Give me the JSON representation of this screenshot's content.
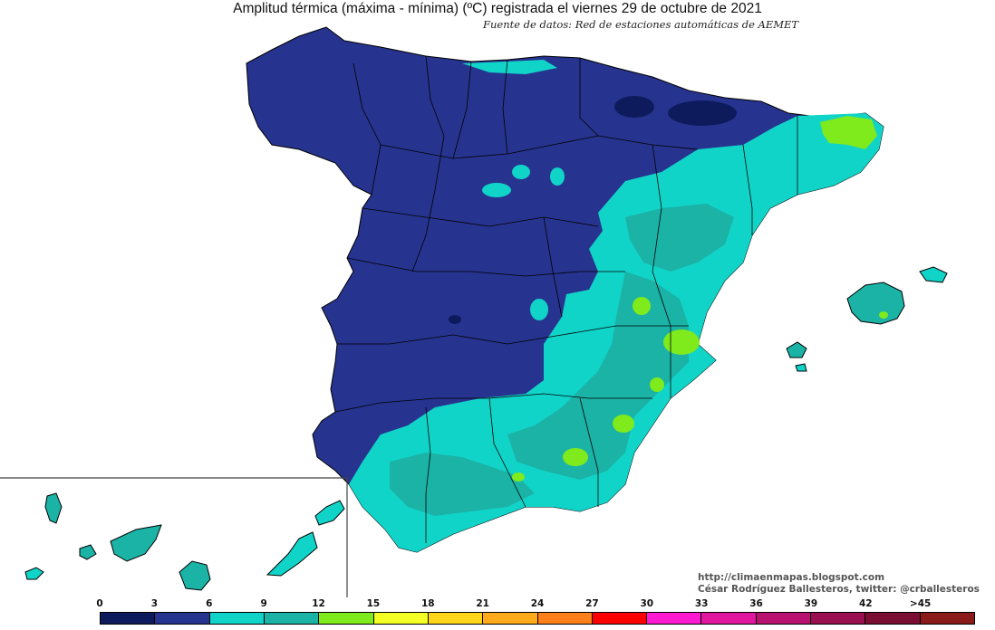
{
  "title": "Amplitud térmica (máxima - mínima) (ºC) registrada el viernes 29 de octubre de 2021",
  "subtitle": "Fuente de datos: Red de estaciones automáticas de AEMET",
  "credit": {
    "url": "http://climaenmapas.blogspot.com",
    "author": "César Rodríguez Ballesteros, twitter: @crballesteros"
  },
  "colors": {
    "sea": "#ffffff",
    "border": "#000000",
    "class_0_3": "#0d1b5c",
    "class_3_6": "#26348f",
    "class_6_9": "#11d4c8",
    "class_9_12": "#1ab3a6",
    "class_12_15": "#7fea1c"
  },
  "legend": {
    "ticks": [
      "0",
      "3",
      "6",
      "9",
      "12",
      "15",
      "18",
      "21",
      "24",
      "27",
      "30",
      "33",
      "36",
      "39",
      "42",
      ">45"
    ],
    "colors": [
      "#0d1b5c",
      "#26348f",
      "#11d4c8",
      "#1ab3a6",
      "#7fea1c",
      "#f4ff26",
      "#ffd51a",
      "#ffaa1a",
      "#ff7f1a",
      "#ff0000",
      "#ff19d0",
      "#e1169f",
      "#b8116f",
      "#9a0f50",
      "#7a0d32",
      "#8b1a1a"
    ]
  }
}
